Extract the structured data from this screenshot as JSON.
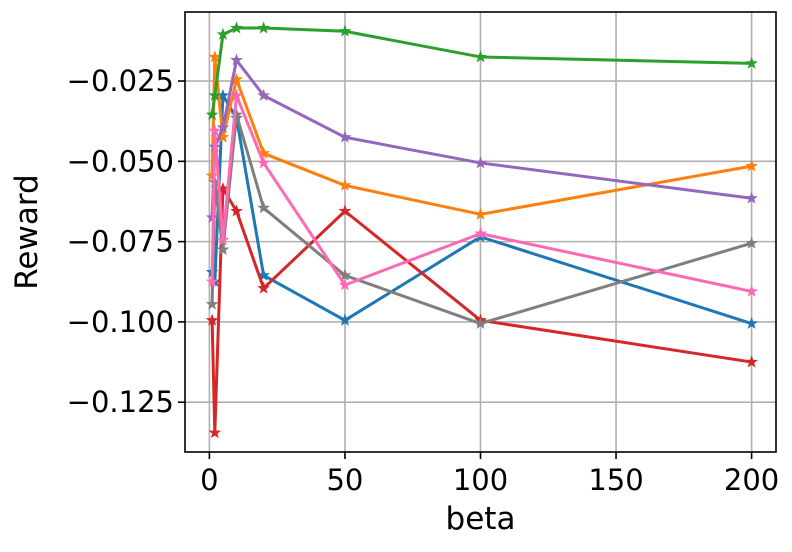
{
  "chart_data": {
    "type": "line",
    "title": "",
    "xlabel": "beta",
    "ylabel": "Reward",
    "xlim": [
      -9,
      209
    ],
    "ylim": [
      -0.1405,
      -0.0035
    ],
    "grid": true,
    "marker": "star",
    "xticks": [
      0,
      50,
      100,
      150,
      200
    ],
    "xtick_labels": [
      "0",
      "50",
      "100",
      "150",
      "200"
    ],
    "yticks": [
      -0.125,
      -0.1,
      -0.075,
      -0.05,
      -0.025
    ],
    "ytick_labels": [
      "−0.125",
      "−0.100",
      "−0.075",
      "−0.050",
      "−0.025"
    ],
    "x": [
      1,
      2,
      5,
      10,
      20,
      50,
      100,
      200
    ],
    "series": [
      {
        "color": "#1f77b4",
        "values": [
          -0.0845,
          -0.0875,
          -0.0295,
          -0.0365,
          -0.0855,
          -0.0995,
          -0.0735,
          -0.1005
        ]
      },
      {
        "color": "#ff7f0e",
        "values": [
          -0.0545,
          -0.0175,
          -0.0425,
          -0.0245,
          -0.0475,
          -0.0575,
          -0.0665,
          -0.0515
        ]
      },
      {
        "color": "#2ca02c",
        "values": [
          -0.0355,
          -0.0295,
          -0.0105,
          -0.0085,
          -0.0085,
          -0.0095,
          -0.0175,
          -0.0195
        ]
      },
      {
        "color": "#d62728",
        "values": [
          -0.0995,
          -0.1345,
          -0.0585,
          -0.0655,
          -0.0895,
          -0.0655,
          -0.0995,
          -0.1125
        ]
      },
      {
        "color": "#9467bd",
        "values": [
          -0.0675,
          -0.0455,
          -0.0395,
          -0.0185,
          -0.0295,
          -0.0425,
          -0.0505,
          -0.0615
        ]
      },
      {
        "color": "#7f7f7f",
        "values": [
          -0.0945,
          -0.0565,
          -0.0775,
          -0.0355,
          -0.0645,
          -0.0855,
          -0.1005,
          -0.0755
        ]
      },
      {
        "color": "#ff69b4",
        "values": [
          -0.0875,
          -0.0405,
          -0.0745,
          -0.0295,
          -0.0505,
          -0.0885,
          -0.0725,
          -0.0905
        ]
      }
    ]
  }
}
